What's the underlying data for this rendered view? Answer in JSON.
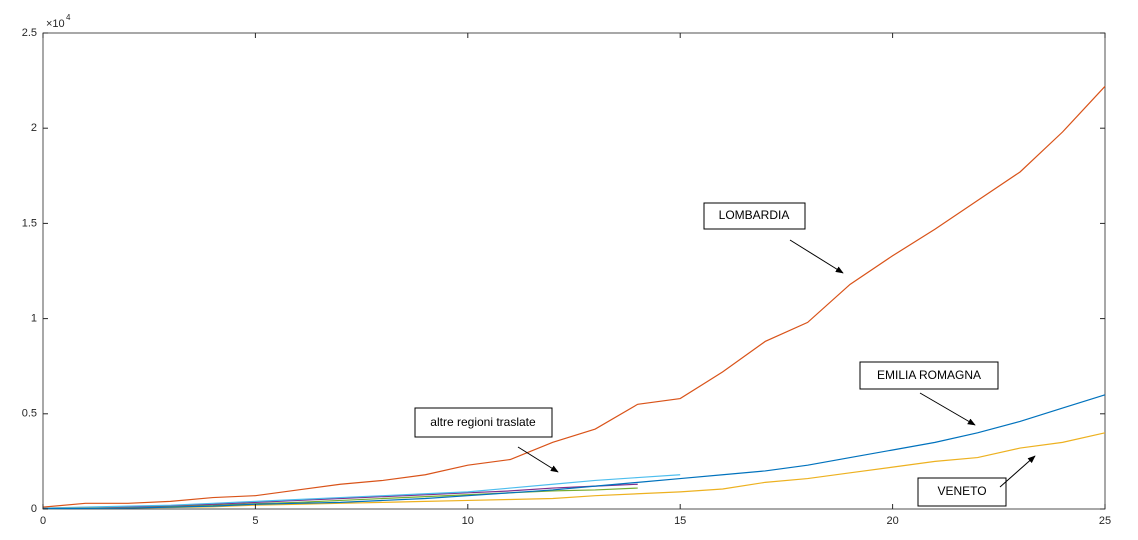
{
  "chart_data": {
    "type": "line",
    "x": [
      0,
      1,
      2,
      3,
      4,
      5,
      6,
      7,
      8,
      9,
      10,
      11,
      12,
      13,
      14,
      15,
      16,
      17,
      18,
      19,
      20,
      21,
      22,
      23,
      24,
      25
    ],
    "series": [
      {
        "color": "#D95319",
        "values": [
          0.01,
          0.03,
          0.03,
          0.04,
          0.06,
          0.07,
          0.1,
          0.13,
          0.15,
          0.18,
          0.23,
          0.26,
          0.35,
          0.42,
          0.55,
          0.58,
          0.72,
          0.88,
          0.98,
          1.18,
          1.33,
          1.47,
          1.62,
          1.77,
          1.98,
          2.22
        ]
      },
      {
        "color": "#0072BD",
        "values": [
          0.002,
          0.003,
          0.005,
          0.01,
          0.015,
          0.025,
          0.03,
          0.035,
          0.045,
          0.055,
          0.07,
          0.085,
          0.1,
          0.12,
          0.14,
          0.16,
          0.18,
          0.2,
          0.23,
          0.27,
          0.31,
          0.35,
          0.4,
          0.46,
          0.53,
          0.6
        ]
      },
      {
        "color": "#EDB120",
        "values": [
          0.002,
          0.004,
          0.006,
          0.008,
          0.012,
          0.02,
          0.025,
          0.03,
          0.035,
          0.04,
          0.045,
          0.05,
          0.055,
          0.07,
          0.08,
          0.09,
          0.105,
          0.14,
          0.16,
          0.19,
          0.22,
          0.25,
          0.27,
          0.32,
          0.35,
          0.4
        ]
      },
      {
        "color": "#4DBEEE",
        "values": [
          0.005,
          0.01,
          0.015,
          0.02,
          0.03,
          0.04,
          0.05,
          0.06,
          0.07,
          0.08,
          0.09,
          0.11,
          0.13,
          0.15,
          0.165,
          0.18,
          null,
          null,
          null,
          null,
          null,
          null,
          null,
          null,
          null,
          null
        ]
      },
      {
        "color": "#7E2F8E",
        "values": [
          0.004,
          0.008,
          0.012,
          0.018,
          0.025,
          0.035,
          0.045,
          0.055,
          0.065,
          0.075,
          0.085,
          0.095,
          0.11,
          0.12,
          0.13,
          null,
          null,
          null,
          null,
          null,
          null,
          null,
          null,
          null,
          null,
          null
        ]
      },
      {
        "color": "#77AC30",
        "values": [
          0.003,
          0.006,
          0.01,
          0.014,
          0.02,
          0.028,
          0.035,
          0.045,
          0.055,
          0.065,
          0.075,
          0.085,
          0.095,
          0.1,
          0.11,
          null,
          null,
          null,
          null,
          null,
          null,
          null,
          null,
          null,
          null,
          null
        ]
      }
    ],
    "xlim": [
      0,
      25
    ],
    "xticks": [
      0,
      5,
      10,
      15,
      20,
      25
    ],
    "ylim": [
      0,
      2.5
    ],
    "yticks": [
      0,
      0.5,
      1,
      1.5,
      2,
      2.5
    ],
    "y_multiplier": "×10",
    "y_multiplier_exponent": "4",
    "annotations": [
      "LOMBARDIA",
      "EMILIA ROMAGNA",
      "altre regioni traslate",
      "VENETO"
    ]
  }
}
